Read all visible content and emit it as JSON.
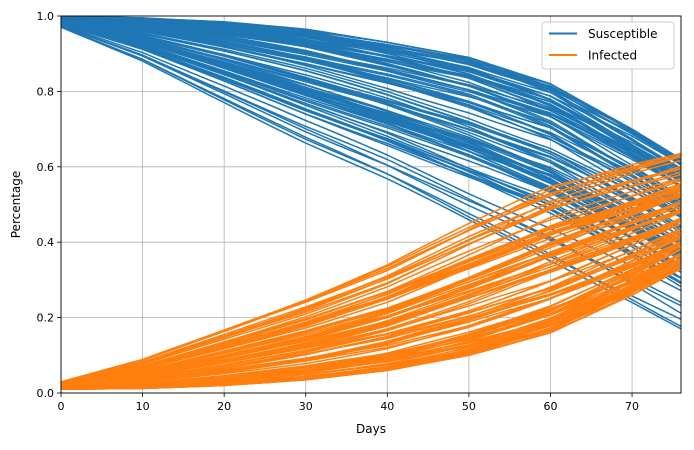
{
  "chart_data": {
    "type": "line",
    "title": "",
    "xlabel": "Days",
    "ylabel": "Percentage",
    "xlim": [
      0,
      76
    ],
    "ylim": [
      0,
      1
    ],
    "x_ticks": [
      0,
      10,
      20,
      30,
      40,
      50,
      60,
      70
    ],
    "y_ticks": [
      0.0,
      0.2,
      0.4,
      0.6,
      0.8,
      1.0
    ],
    "x_tick_labels": [
      "0",
      "10",
      "20",
      "30",
      "40",
      "50",
      "60",
      "70"
    ],
    "y_tick_labels": [
      "0.0",
      "0.2",
      "0.4",
      "0.6",
      "0.8",
      "1.0"
    ],
    "grid": true,
    "legend_position": "top-right",
    "legend": [
      {
        "name": "Susceptible",
        "color": "#1f77b4"
      },
      {
        "name": "Infected",
        "color": "#ff7f0e"
      }
    ],
    "series": [
      {
        "name": "Susceptible",
        "color": "#1f77b4",
        "trajectory_count": 100,
        "envelope": {
          "x": [
            0,
            10,
            20,
            30,
            40,
            50,
            60,
            70,
            76
          ],
          "lower": [
            0.97,
            0.88,
            0.77,
            0.66,
            0.56,
            0.45,
            0.35,
            0.24,
            0.17
          ],
          "upper": [
            1.0,
            0.995,
            0.985,
            0.965,
            0.93,
            0.89,
            0.82,
            0.7,
            0.62
          ]
        }
      },
      {
        "name": "Infected",
        "color": "#ff7f0e",
        "trajectory_count": 100,
        "envelope": {
          "x": [
            0,
            10,
            20,
            30,
            40,
            50,
            60,
            70,
            76
          ],
          "lower": [
            0.01,
            0.012,
            0.02,
            0.035,
            0.06,
            0.1,
            0.16,
            0.26,
            0.33
          ],
          "upper": [
            0.03,
            0.09,
            0.17,
            0.25,
            0.34,
            0.45,
            0.55,
            0.61,
            0.64
          ]
        }
      }
    ]
  }
}
